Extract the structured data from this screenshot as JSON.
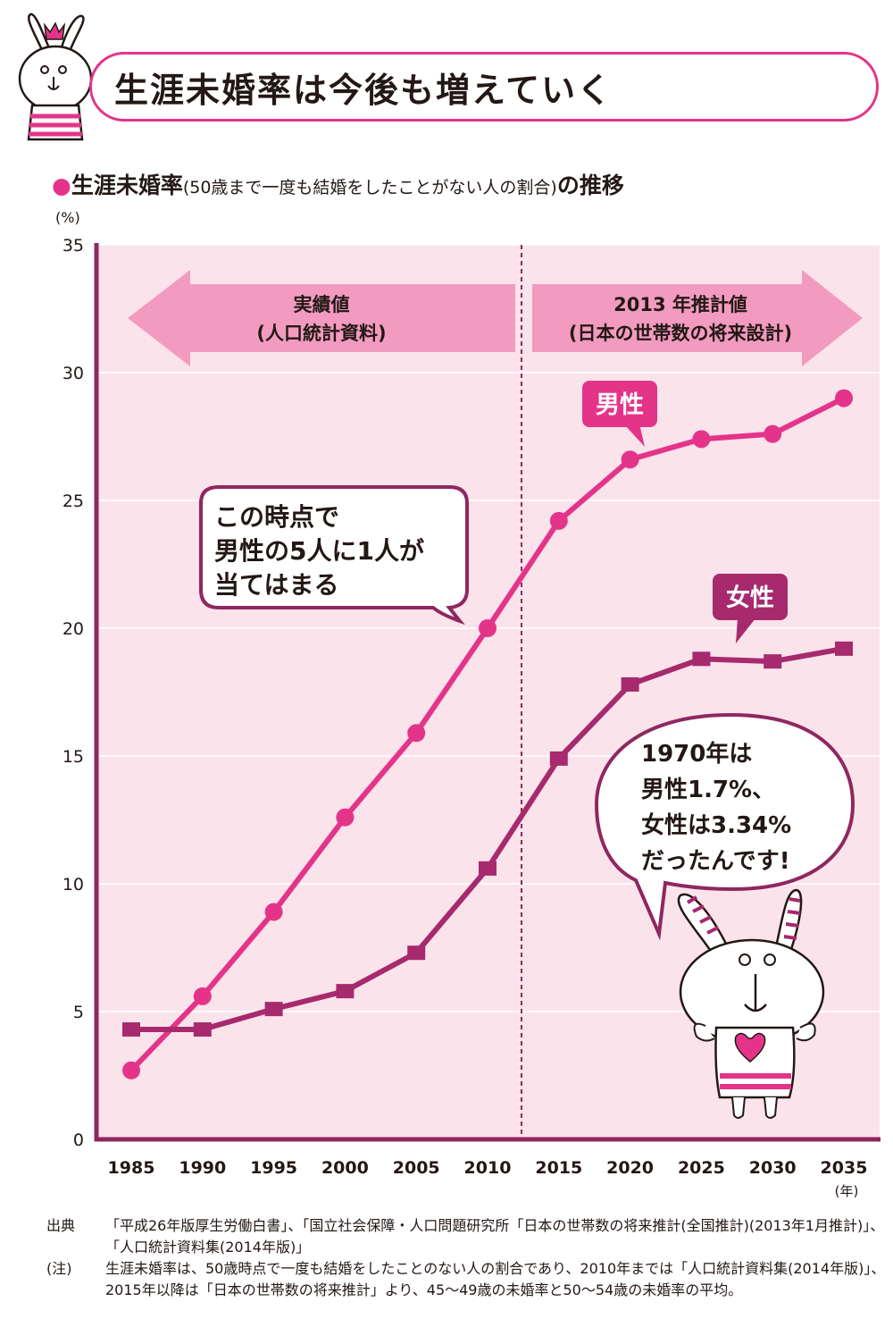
{
  "header": {
    "title": "生涯未婚率は今後も増えていく"
  },
  "subtitle": {
    "main": "生涯未婚率",
    "paren": "(50歳まで一度も結婚をしたことがない人の割合)",
    "tail": "の推移"
  },
  "colors": {
    "accent": "#e4348a",
    "male": "#e4348a",
    "female": "#a62a6d",
    "plot_bg": "#fbe3ec",
    "arrow": "#f29bbf",
    "axis": "#8f2760"
  },
  "chart_data": {
    "type": "line",
    "x": [
      1985,
      1990,
      1995,
      2000,
      2005,
      2010,
      2015,
      2020,
      2025,
      2030,
      2035
    ],
    "ylim": [
      0,
      35
    ],
    "ylabel": "(%)",
    "xlabel": "(年)",
    "yticks": [
      "0",
      "5",
      "10",
      "15",
      "20",
      "25",
      "30",
      "35"
    ],
    "xticks": [
      "1985",
      "1990",
      "1995",
      "2000",
      "2005",
      "2010",
      "2015",
      "2020",
      "2025",
      "2030",
      "2035"
    ],
    "grid": true,
    "series": [
      {
        "name": "男性",
        "marker": "circle",
        "values": [
          2.7,
          5.6,
          8.9,
          12.6,
          15.9,
          20.0,
          24.2,
          26.6,
          27.4,
          27.6,
          29.0
        ]
      },
      {
        "name": "女性",
        "marker": "square",
        "values": [
          4.3,
          4.3,
          5.1,
          5.8,
          7.3,
          10.6,
          14.9,
          17.8,
          18.8,
          18.7,
          19.2
        ]
      }
    ],
    "regions": [
      {
        "label_line1": "実績値",
        "label_line2": "(人口統計資料)"
      },
      {
        "label_line1": "2013 年推計値",
        "label_line2": "(日本の世帯数の将来設計)"
      }
    ],
    "annotations": {
      "bubble_left": [
        "この時点で",
        "男性の5人に1人が",
        "当てはまる"
      ],
      "bubble_right": [
        "1970年は",
        "男性1.7%、",
        "女性は3.34%",
        "だったんです!"
      ]
    }
  },
  "notes": [
    {
      "key": "出典",
      "text": "「平成26年版厚生労働白書」、「国立社会保障・人口問題研究所「日本の世帯数の将来推計(全国推計)(2013年1月推計)」、「人口統計資料集(2014年版)」"
    },
    {
      "key": "(注)",
      "text": "生涯未婚率は、50歳時点で一度も結婚をしたことのない人の割合であり、2010年までは「人口統計資料集(2014年版)」、2015年以降は「日本の世帯数の将来推計」より、45～49歳の未婚率と50～54歳の未婚率の平均。"
    }
  ]
}
